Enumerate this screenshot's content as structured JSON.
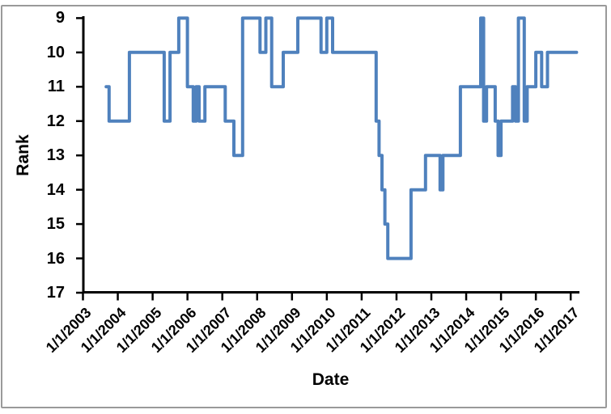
{
  "chart_data": {
    "type": "line",
    "title": "",
    "xlabel": "Date",
    "ylabel": "Rank",
    "legend": "none",
    "grid": false,
    "y_axis_inverted": true,
    "ylim": [
      9,
      17
    ],
    "y_ticks": [
      9,
      10,
      11,
      12,
      13,
      14,
      15,
      16,
      17
    ],
    "x_ticks": [
      "1/1/2003",
      "1/1/2004",
      "1/1/2005",
      "1/1/2006",
      "1/1/2007",
      "1/1/2008",
      "1/1/2009",
      "1/1/2010",
      "1/1/2011",
      "1/1/2012",
      "1/1/2013",
      "1/1/2014",
      "1/1/2015",
      "1/1/2016",
      "1/1/2017"
    ],
    "line_color": "#4f81bd",
    "axis_color": "#000000",
    "frame_color": "#9a9a9a",
    "series": [
      {
        "name": "Rank",
        "note": "monthly rank values; points are [month, rank] change-points held until next change",
        "points": [
          [
            "2003-09",
            11
          ],
          [
            "2003-10",
            12
          ],
          [
            "2004-05",
            10
          ],
          [
            "2005-05",
            12
          ],
          [
            "2005-07",
            10
          ],
          [
            "2005-10",
            9
          ],
          [
            "2006-01",
            11
          ],
          [
            "2006-03",
            12
          ],
          [
            "2006-04",
            11
          ],
          [
            "2006-05",
            12
          ],
          [
            "2006-07",
            11
          ],
          [
            "2007-02",
            12
          ],
          [
            "2007-05",
            13
          ],
          [
            "2007-08",
            9
          ],
          [
            "2008-02",
            10
          ],
          [
            "2008-04",
            9
          ],
          [
            "2008-06",
            11
          ],
          [
            "2008-10",
            10
          ],
          [
            "2009-03",
            9
          ],
          [
            "2009-11",
            10
          ],
          [
            "2010-01",
            9
          ],
          [
            "2010-03",
            10
          ],
          [
            "2011-06",
            12
          ],
          [
            "2011-07",
            13
          ],
          [
            "2011-08",
            14
          ],
          [
            "2011-09",
            15
          ],
          [
            "2011-10",
            16
          ],
          [
            "2012-06",
            14
          ],
          [
            "2012-11",
            13
          ],
          [
            "2013-04",
            14
          ],
          [
            "2013-05",
            13
          ],
          [
            "2013-11",
            11
          ],
          [
            "2014-06",
            9
          ],
          [
            "2014-07",
            12
          ],
          [
            "2014-08",
            11
          ],
          [
            "2014-11",
            12
          ],
          [
            "2014-12",
            13
          ],
          [
            "2015-01",
            12
          ],
          [
            "2015-05",
            11
          ],
          [
            "2015-06",
            12
          ],
          [
            "2015-07",
            9
          ],
          [
            "2015-09",
            12
          ],
          [
            "2015-10",
            11
          ],
          [
            "2016-01",
            10
          ],
          [
            "2016-03",
            11
          ],
          [
            "2016-05",
            10
          ]
        ],
        "end_date": "2017-03"
      }
    ]
  }
}
